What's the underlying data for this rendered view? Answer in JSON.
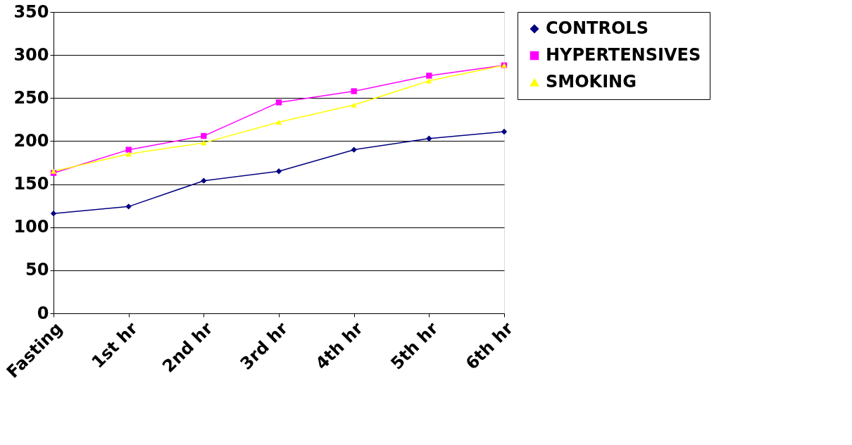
{
  "chart_data": {
    "type": "line",
    "categories": [
      "Fasting",
      "1st hr",
      "2nd hr",
      "3rd hr",
      "4th hr",
      "5th hr",
      "6th hr"
    ],
    "series": [
      {
        "name": "CONTROLS",
        "color": "#000080",
        "marker": "diamond",
        "values": [
          116,
          124,
          154,
          165,
          190,
          203,
          211
        ]
      },
      {
        "name": "HYPERTENSIVES",
        "color": "#ff00ff",
        "marker": "square",
        "values": [
          163,
          190,
          206,
          245,
          258,
          276,
          288
        ]
      },
      {
        "name": "SMOKING",
        "color": "#ffff00",
        "marker": "triangle",
        "values": [
          165,
          185,
          198,
          222,
          242,
          270,
          288
        ]
      }
    ],
    "ylim": [
      0,
      350
    ],
    "yticks": [
      0,
      50,
      100,
      150,
      200,
      250,
      300,
      350
    ],
    "grid": "y",
    "legend": "right"
  }
}
